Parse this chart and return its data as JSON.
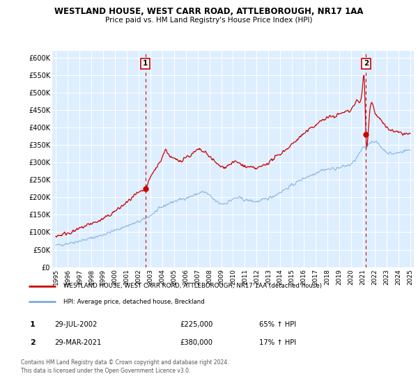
{
  "title": "WESTLAND HOUSE, WEST CARR ROAD, ATTLEBOROUGH, NR17 1AA",
  "subtitle": "Price paid vs. HM Land Registry's House Price Index (HPI)",
  "legend_line1": "WESTLAND HOUSE, WEST CARR ROAD, ATTLEBOROUGH, NR17 1AA (detached house)",
  "legend_line2": "HPI: Average price, detached house, Breckland",
  "footnote1": "Contains HM Land Registry data © Crown copyright and database right 2024.",
  "footnote2": "This data is licensed under the Open Government Licence v3.0.",
  "sale1_label": "1",
  "sale1_date": "29-JUL-2002",
  "sale1_price": "£225,000",
  "sale1_hpi": "65% ↑ HPI",
  "sale1_x": 2002.58,
  "sale1_y": 225000,
  "sale2_label": "2",
  "sale2_date": "29-MAR-2021",
  "sale2_price": "£380,000",
  "sale2_hpi": "17% ↑ HPI",
  "sale2_x": 2021.25,
  "sale2_y": 380000,
  "red_color": "#cc0000",
  "blue_color": "#7aaadd",
  "chart_bg": "#ddeeff",
  "grid_color": "#ffffff",
  "ylim": [
    0,
    620000
  ],
  "xlim_start": 1994.7,
  "xlim_end": 2025.3
}
